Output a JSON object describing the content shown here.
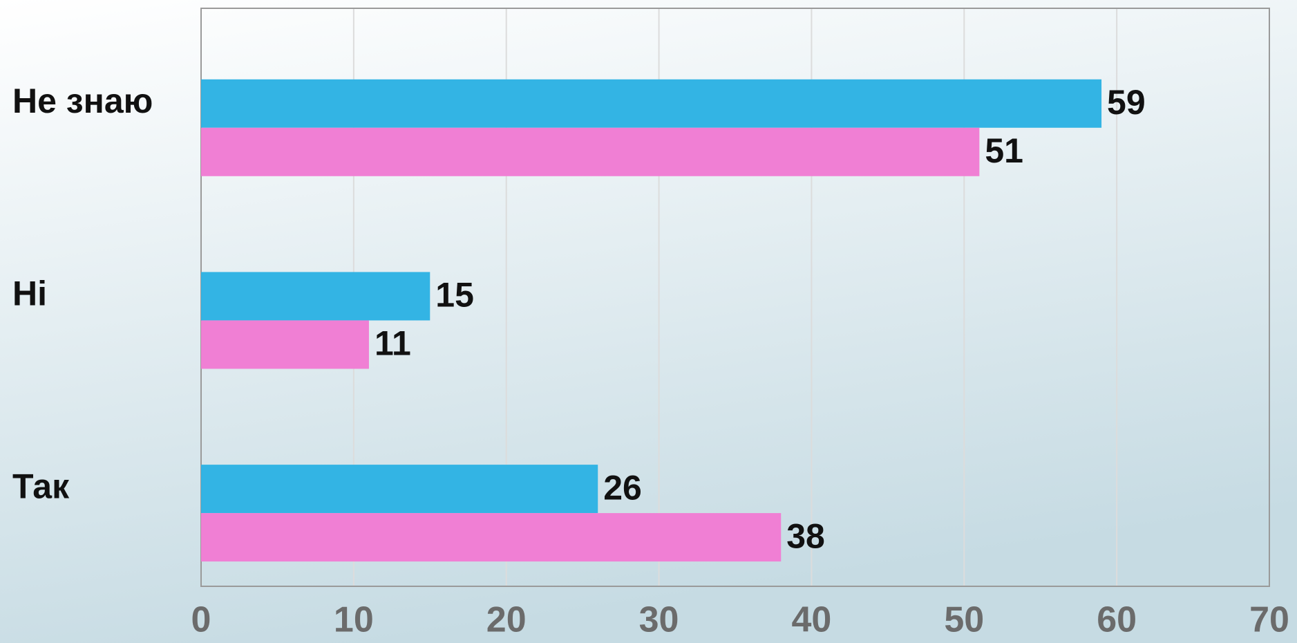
{
  "chart_data": {
    "type": "bar",
    "orientation": "horizontal",
    "categories": [
      "Не знаю",
      "Ні",
      "Так"
    ],
    "series": [
      {
        "color": "#33b4e4",
        "values": [
          59,
          15,
          26
        ]
      },
      {
        "color": "#f07fd4",
        "values": [
          51,
          11,
          38
        ]
      }
    ],
    "xlim": [
      0,
      70
    ],
    "xticks": [
      0,
      10,
      20,
      30,
      40,
      50,
      60,
      70
    ],
    "grid": true
  }
}
